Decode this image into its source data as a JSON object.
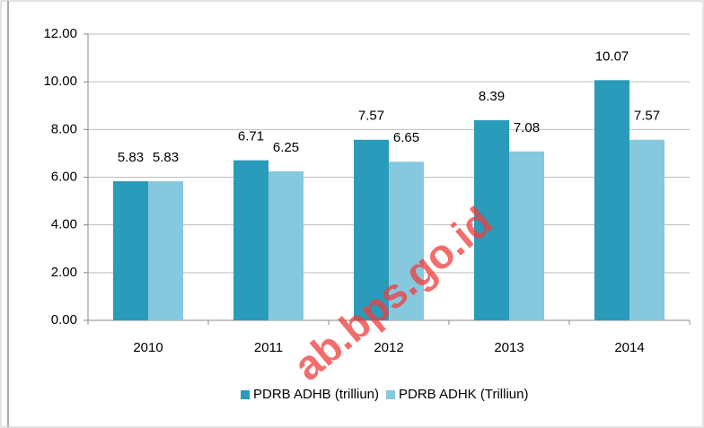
{
  "chart_data": {
    "type": "bar",
    "categories": [
      "2010",
      "2011",
      "2012",
      "2013",
      "2014"
    ],
    "series": [
      {
        "name": "PDRB ADHB (trilliun)",
        "color": "#2b9bbb",
        "values": [
          5.83,
          6.71,
          7.57,
          8.39,
          10.07
        ]
      },
      {
        "name": "PDRB ADHK (Trilliun)",
        "color": "#86c8de",
        "values": [
          5.83,
          6.25,
          6.65,
          7.08,
          7.57
        ]
      }
    ],
    "ylim": [
      0,
      12
    ],
    "yticks": [
      {
        "value": 0,
        "label": "0.00"
      },
      {
        "value": 2,
        "label": "2.00"
      },
      {
        "value": 4,
        "label": "4.00"
      },
      {
        "value": 6,
        "label": "6.00"
      },
      {
        "value": 8,
        "label": "8.00"
      },
      {
        "value": 10,
        "label": "10.00"
      },
      {
        "value": 12,
        "label": "12.00"
      }
    ],
    "grid": true,
    "legend": "bottom",
    "watermark": "ab.bps.go.id"
  }
}
